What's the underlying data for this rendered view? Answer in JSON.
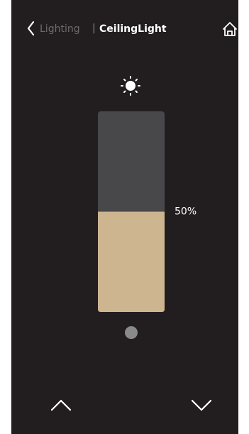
{
  "header": {
    "back_label": "Lighting",
    "separator": "|",
    "title": "CeilingLight"
  },
  "slider": {
    "value": 50,
    "value_label": "50%"
  }
}
